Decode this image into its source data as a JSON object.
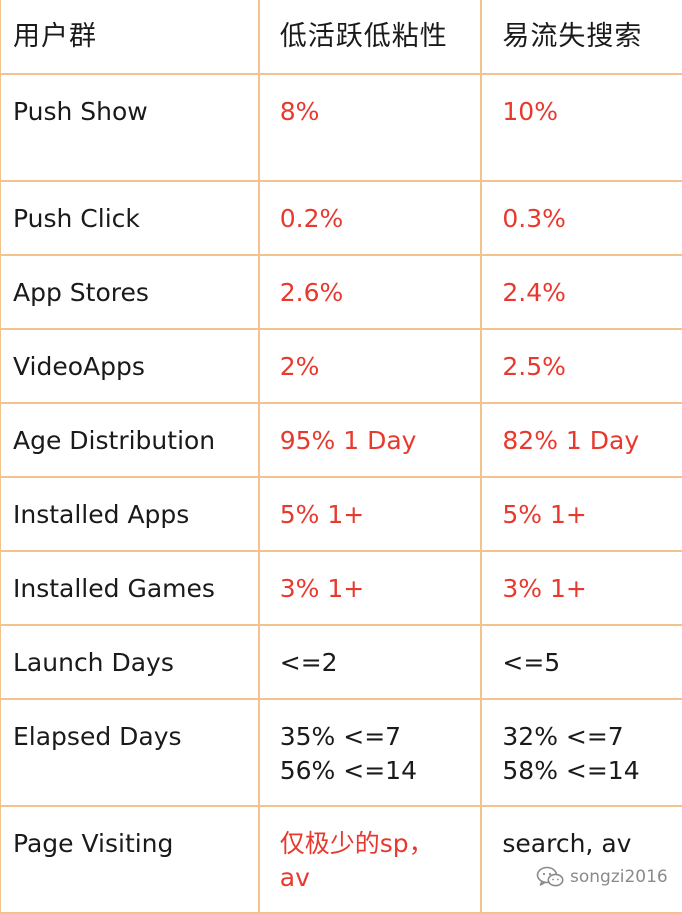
{
  "table": {
    "headers": [
      "用户群",
      "低活跃低粘性",
      "易流失搜索"
    ],
    "rows": [
      {
        "label": "Push Show",
        "low": [
          "8%"
        ],
        "churn": [
          "10%"
        ],
        "low_red": true,
        "churn_red": true
      },
      {
        "label": "Push Click",
        "low": [
          "0.2%"
        ],
        "churn": [
          "0.3%"
        ],
        "low_red": true,
        "churn_red": true
      },
      {
        "label": "App Stores",
        "low": [
          "2.6%"
        ],
        "churn": [
          "2.4%"
        ],
        "low_red": true,
        "churn_red": true
      },
      {
        "label": "VideoApps",
        "low": [
          "2%"
        ],
        "churn": [
          "2.5%"
        ],
        "low_red": true,
        "churn_red": true
      },
      {
        "label": "Age Distribution",
        "low": [
          "95% 1 Day"
        ],
        "churn": [
          "82% 1 Day"
        ],
        "low_red": true,
        "churn_red": true
      },
      {
        "label": "Installed Apps",
        "low": [
          "5% 1+"
        ],
        "churn": [
          "5% 1+"
        ],
        "low_red": true,
        "churn_red": true
      },
      {
        "label": "Installed Games",
        "low": [
          "3% 1+"
        ],
        "churn": [
          "3% 1+"
        ],
        "low_red": true,
        "churn_red": true
      },
      {
        "label": "Launch Days",
        "low": [
          "<=2"
        ],
        "churn": [
          "<=5"
        ],
        "low_red": false,
        "churn_red": false
      },
      {
        "label": "Elapsed Days",
        "low": [
          "35% <=7",
          "56% <=14"
        ],
        "churn": [
          "32% <=7",
          "58% <=14"
        ],
        "low_red": false,
        "churn_red": false
      },
      {
        "label": "Page Visiting",
        "low": [
          "仅极少的sp，",
          "av"
        ],
        "churn": [
          "search, av"
        ],
        "low_red": true,
        "churn_red": false
      }
    ]
  },
  "watermark": {
    "text": "songzi2016",
    "icon": "wechat-icon"
  },
  "colors": {
    "border": "#f2c38f",
    "highlight": "#e8392f",
    "text": "#1a1a1a",
    "watermark": "#8a8a8a"
  }
}
